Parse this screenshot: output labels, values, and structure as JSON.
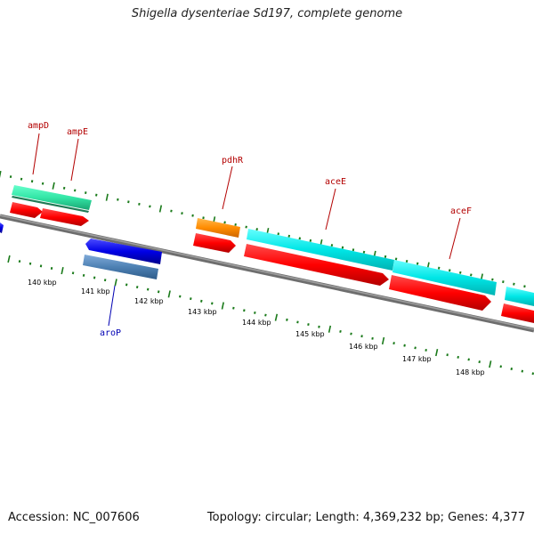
{
  "title": "Shigella dysenteriae Sd197, complete genome",
  "footer": {
    "accession": "Accession: NC_007606",
    "summary": "Topology: circular; Length: 4,369,232 bp; Genes: 4,377"
  },
  "colors": {
    "backbone": "#808080",
    "tick": "#1a7a1a",
    "forward_label": "#b30000",
    "reverse_label": "#0000b3"
  },
  "scale": {
    "unit": "kbp",
    "labels": [
      "140 kbp",
      "141 kbp",
      "142 kbp",
      "143 kbp",
      "144 kbp",
      "145 kbp",
      "146 kbp",
      "147 kbp",
      "148 kbp"
    ]
  },
  "genes": [
    {
      "name": "ampD",
      "strand": "+",
      "color": "#33e6a6",
      "labeled": true
    },
    {
      "name": "ampE",
      "strand": "+",
      "color": "#ff0000",
      "labeled": true
    },
    {
      "name": "pdhR",
      "strand": "+",
      "color": "#ff8c00",
      "labeled": true
    },
    {
      "name": "aceE",
      "strand": "+",
      "color": "#00e6e6",
      "labeled": true
    },
    {
      "name": "aceF",
      "strand": "+",
      "color": "#00e6e6",
      "labeled": true
    },
    {
      "name": "aroP",
      "strand": "-",
      "color": "#0000e6",
      "labeled": true
    }
  ]
}
